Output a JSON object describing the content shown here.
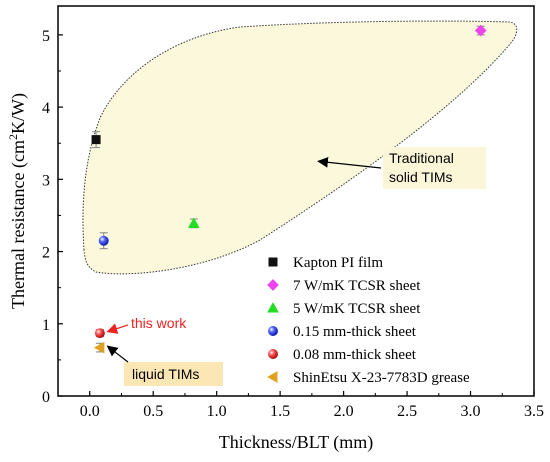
{
  "chart_data": {
    "type": "scatter",
    "title": "",
    "xlabel": "Thickness/BLT (mm)",
    "ylabel_parts": {
      "main": "Thermal resistance (cm",
      "sup": "2",
      "tail": "K/W)"
    },
    "xlim": [
      -0.25,
      3.5
    ],
    "ylim": [
      0,
      5.4
    ],
    "xticks": [
      0.0,
      0.5,
      1.0,
      1.5,
      2.0,
      2.5,
      3.0,
      3.5
    ],
    "xtick_labels": [
      "0.0",
      "0.5",
      "1.0",
      "1.5",
      "2.0",
      "2.5",
      "3.0",
      "3.5"
    ],
    "yticks": [
      0,
      1,
      2,
      3,
      4,
      5
    ],
    "ytick_labels": [
      "0",
      "1",
      "2",
      "3",
      "4",
      "5"
    ],
    "grid": false,
    "legend_position": "bottom-right",
    "series": [
      {
        "name": "Kapton PI film",
        "marker": "square",
        "color": "#111111",
        "x": [
          0.05
        ],
        "y": [
          3.55
        ],
        "yerr": [
          0.11
        ]
      },
      {
        "name": "7 W/mK TCSR sheet",
        "marker": "diamond",
        "color": "#ee44ee",
        "x": [
          3.08
        ],
        "y": [
          5.06
        ],
        "yerr": [
          0.06
        ]
      },
      {
        "name": "5 W/mK TCSR sheet",
        "marker": "triangle-up",
        "color": "#22dd22",
        "x": [
          0.82
        ],
        "y": [
          2.39
        ],
        "yerr": [
          0.06
        ]
      },
      {
        "name": "0.15 mm-thick sheet",
        "marker": "ball",
        "color": "#2222ee",
        "x": [
          0.11
        ],
        "y": [
          2.15
        ],
        "yerr": [
          0.11
        ]
      },
      {
        "name": "0.08 mm-thick sheet",
        "marker": "ball",
        "color": "#ee2222",
        "x": [
          0.08
        ],
        "y": [
          0.87
        ],
        "yerr": [
          0.05
        ]
      },
      {
        "name": "ShinEtsu X-23-7783D grease",
        "marker": "triangle-left",
        "color": "#e0a020",
        "x": [
          0.08
        ],
        "y": [
          0.67
        ],
        "yerr": [
          0.06
        ]
      }
    ],
    "annotations": [
      {
        "id": "traditional",
        "text_lines": [
          "Traditional",
          "solid TIMs"
        ],
        "box_color": "#fbf6d8",
        "arrow_to": [
          1.8,
          3.25
        ]
      },
      {
        "id": "liquid",
        "text": "liquid TIMs",
        "box_color": "#fbe6b4",
        "arrow_to": [
          0.14,
          0.69
        ]
      },
      {
        "id": "this-work",
        "text": "this work",
        "text_color": "#ee2222",
        "arrow_to": [
          0.14,
          0.89
        ]
      }
    ],
    "region": {
      "name": "solid TIMs region",
      "fill": "#fbf8dc"
    }
  }
}
